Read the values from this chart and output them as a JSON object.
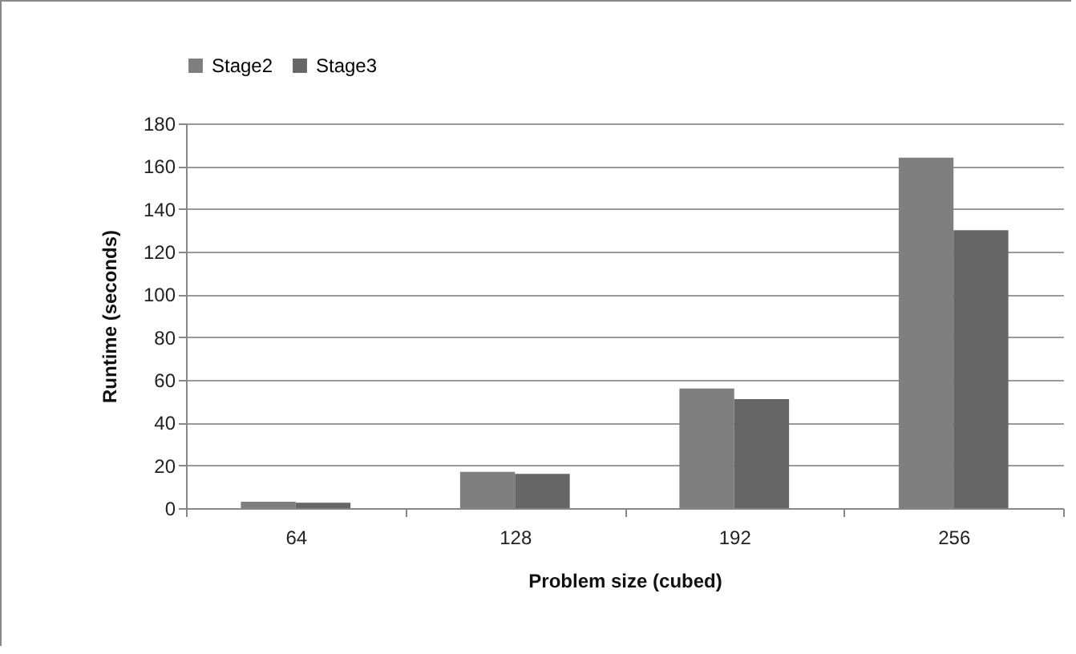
{
  "chart_data": {
    "type": "bar",
    "xlabel": "Problem size (cubed)",
    "ylabel": "Runtime (seconds)",
    "categories": [
      "64",
      "128",
      "192",
      "256"
    ],
    "series": [
      {
        "name": "Stage2",
        "color": "#7f7f7f",
        "values": [
          3,
          17,
          56,
          164
        ]
      },
      {
        "name": "Stage3",
        "color": "#666666",
        "values": [
          2.5,
          16,
          51,
          130
        ]
      }
    ],
    "ylim": [
      0,
      180
    ],
    "yticks": [
      0,
      20,
      40,
      60,
      80,
      100,
      120,
      140,
      160,
      180
    ],
    "grid": "y",
    "legend": "top"
  }
}
